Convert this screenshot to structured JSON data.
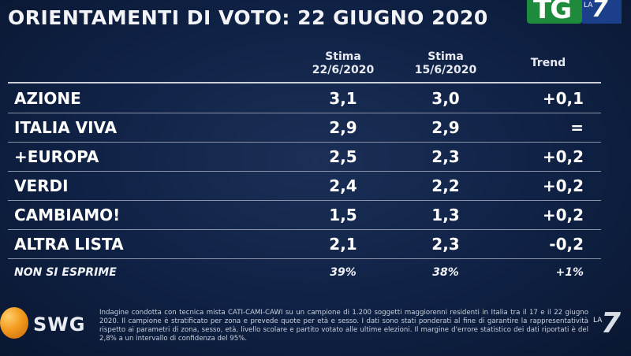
{
  "title": "ORIENTAMENTI DI VOTO: 22 GIUGNO 2020",
  "logos": {
    "channel_short": "TG",
    "la": "LA",
    "seven": "7",
    "pollster": "SWG"
  },
  "colors": {
    "background": "#0f2144",
    "tg_green": "#1e8a3c",
    "la7_blue": "#1b3f8a",
    "swg_orange": "#f29a1f"
  },
  "chart_data": {
    "type": "table",
    "columns": [
      {
        "line1": "Stima",
        "line2": "22/6/2020"
      },
      {
        "line1": "Stima",
        "line2": "15/6/2020"
      },
      {
        "line1": "Trend",
        "line2": ""
      }
    ],
    "rows": [
      {
        "name": "AZIONE",
        "stima_22": "3,1",
        "stima_15": "3,0",
        "trend": "+0,1"
      },
      {
        "name": "ITALIA VIVA",
        "stima_22": "2,9",
        "stima_15": "2,9",
        "trend": "="
      },
      {
        "name": "+EUROPA",
        "stima_22": "2,5",
        "stima_15": "2,3",
        "trend": "+0,2"
      },
      {
        "name": "VERDI",
        "stima_22": "2,4",
        "stima_15": "2,2",
        "trend": "+0,2"
      },
      {
        "name": "CAMBIAMO!",
        "stima_22": "1,5",
        "stima_15": "1,3",
        "trend": "+0,2"
      },
      {
        "name": "ALTRA LISTA",
        "stima_22": "2,1",
        "stima_15": "2,3",
        "trend": "-0,2"
      }
    ],
    "non_si_esprime": {
      "name": "NON SI ESPRIME",
      "stima_22": "39%",
      "stima_15": "38%",
      "trend": "+1%"
    }
  },
  "footnote": "Indagine condotta con tecnica mista CATI-CAMI-CAWI su un campione di 1.200 soggetti maggiorenni residenti in Italia tra il 17 e il 22 giugno 2020. Il campione è stratificato per zona e prevede quote per età e sesso. I dati sono stati ponderati al fine di garantire la rappresentatività rispetto ai parametri di zona, sesso, età, livello scolare e partito votato alle ultime elezioni. Il margine d'errore statistico dei dati riportati è del 2,8% a un intervallo di confidenza del 95%."
}
